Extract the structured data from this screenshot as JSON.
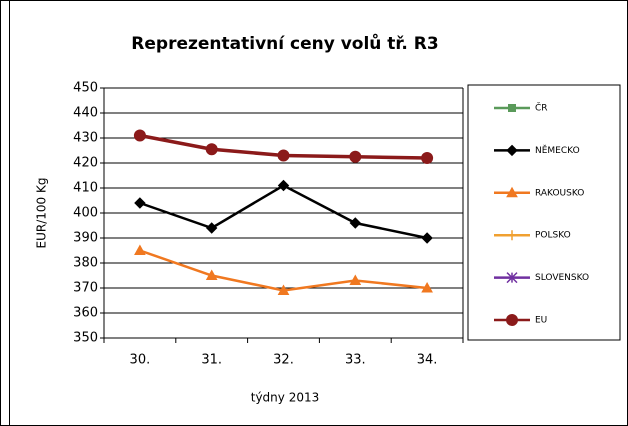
{
  "chart_data": {
    "type": "line",
    "title": "Reprezentativní ceny volů tř. R3",
    "x_label": "týdny  2013",
    "y_label": "EUR/100 Kg",
    "categories": [
      "30.",
      "31.",
      "32.",
      "33.",
      "34."
    ],
    "series": [
      {
        "name": "ČR",
        "color": "#5a9a5a",
        "marker": "square",
        "values": [
          null,
          null,
          null,
          null,
          null
        ]
      },
      {
        "name": "NĚMECKO",
        "color": "#000000",
        "marker": "diamond",
        "values": [
          404,
          394,
          411,
          396,
          390
        ]
      },
      {
        "name": "RAKOUSKO",
        "color": "#f07820",
        "marker": "triangle",
        "values": [
          385,
          375,
          369,
          373,
          370
        ]
      },
      {
        "name": "POLSKO",
        "color": "#f0a030",
        "marker": "plus",
        "values": [
          null,
          null,
          null,
          null,
          null
        ]
      },
      {
        "name": "SLOVENSKO",
        "color": "#7030a0",
        "marker": "star",
        "values": [
          null,
          null,
          null,
          null,
          null
        ]
      },
      {
        "name": "EU",
        "color": "#8b1a1a",
        "marker": "circle",
        "values": [
          431,
          425.5,
          423,
          422.5,
          422
        ]
      }
    ],
    "ylim": [
      350,
      450
    ],
    "yticks": [
      350,
      360,
      370,
      380,
      390,
      400,
      410,
      420,
      430,
      440,
      450
    ],
    "grid": true,
    "legend": "right"
  }
}
